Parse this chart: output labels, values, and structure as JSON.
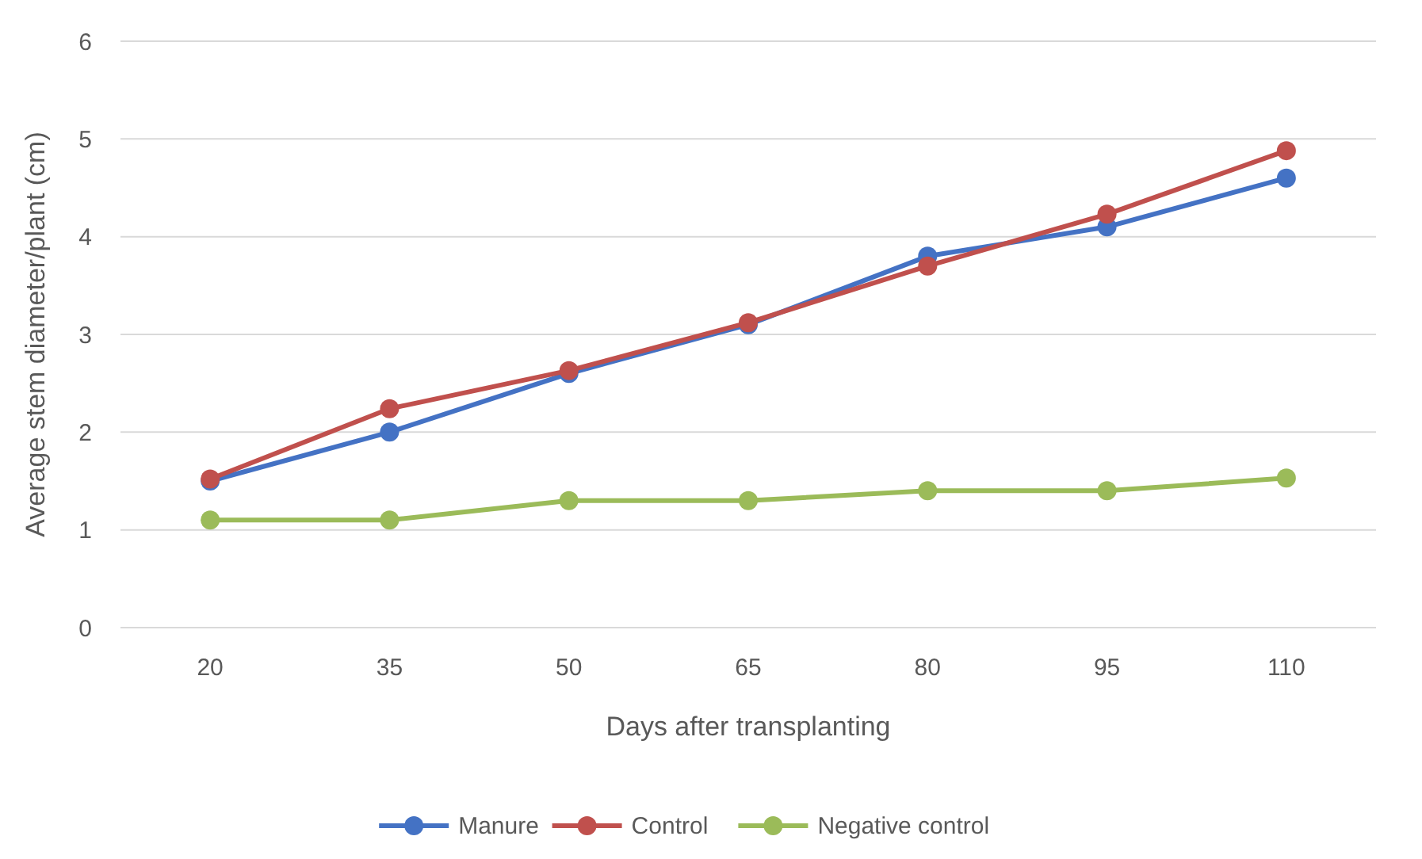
{
  "chart_data": {
    "type": "line",
    "xlabel": "Days after transplanting",
    "ylabel": "Average stem diameter/plant (cm)",
    "categories": [
      "20",
      "35",
      "50",
      "65",
      "80",
      "95",
      "110"
    ],
    "series": [
      {
        "name": "Manure",
        "color": "#4472c4",
        "values": [
          1.5,
          2.0,
          2.6,
          3.1,
          3.8,
          4.1,
          4.6
        ]
      },
      {
        "name": "Control",
        "color": "#c0504d",
        "values": [
          1.52,
          2.24,
          2.63,
          3.12,
          3.7,
          4.23,
          4.88
        ]
      },
      {
        "name": "Negative control",
        "color": "#9bbb59",
        "values": [
          1.1,
          1.1,
          1.3,
          1.3,
          1.4,
          1.4,
          1.53
        ]
      }
    ],
    "ylim": [
      0,
      6
    ],
    "yticks": [
      0,
      1,
      2,
      3,
      4,
      5,
      6
    ],
    "grid": "y",
    "legend": "bottom",
    "marker": "circle",
    "line_style": "solid"
  }
}
